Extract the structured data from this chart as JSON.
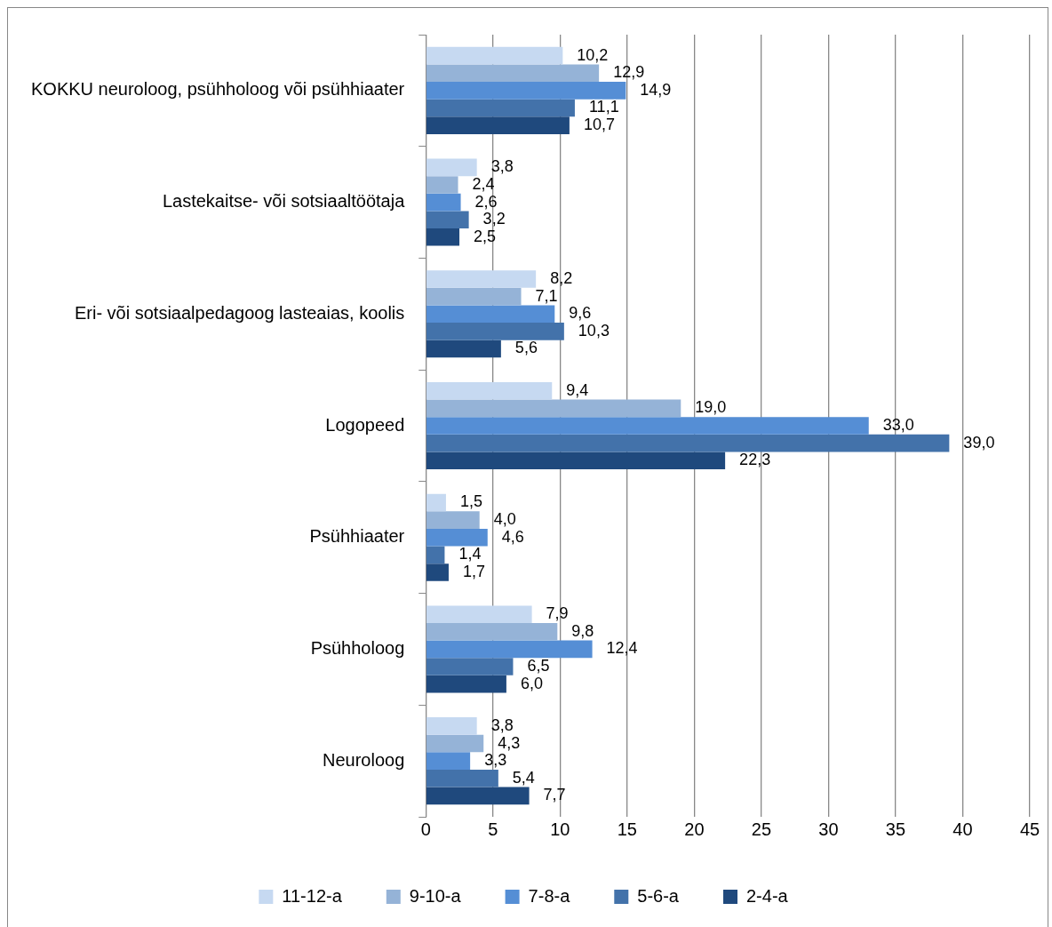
{
  "chart_data": {
    "type": "bar",
    "orientation": "horizontal",
    "categories": [
      "KOKKU neuroloog, psühholoog või psühhiaater",
      "Lastekaitse- või sotsiaaltöötaja",
      "Eri- või sotsiaalpedagoog lasteaias, koolis",
      "Logopeed",
      "Psühhiaater",
      "Psühholoog",
      "Neuroloog"
    ],
    "series": [
      {
        "name": "11-12-a",
        "color": "#c6d9f1",
        "values": [
          10.2,
          3.8,
          8.2,
          9.4,
          1.5,
          7.9,
          3.8
        ],
        "value_labels": [
          "10,2",
          "3,8",
          "8,2",
          "9,4",
          "1,5",
          "7,9",
          "3,8"
        ]
      },
      {
        "name": "9-10-a",
        "color": "#95b3d7",
        "values": [
          12.9,
          2.4,
          7.1,
          19.0,
          4.0,
          9.8,
          4.3
        ],
        "value_labels": [
          "12,9",
          "2,4",
          "7,1",
          "19,0",
          "4,0",
          "9,8",
          "4,3"
        ]
      },
      {
        "name": "7-8-a",
        "color": "#558ed5",
        "values": [
          14.9,
          2.6,
          9.6,
          33.0,
          4.6,
          12.4,
          3.3
        ],
        "value_labels": [
          "14,9",
          "2,6",
          "9,6",
          "33,0",
          "4,6",
          "12,4",
          "3,3"
        ]
      },
      {
        "name": "5-6-a",
        "color": "#4372aa",
        "values": [
          11.1,
          3.2,
          10.3,
          39.0,
          1.4,
          6.5,
          5.4
        ],
        "value_labels": [
          "11,1",
          "3,2",
          "10,3",
          "39,0",
          "1,4",
          "6,5",
          "5,4"
        ]
      },
      {
        "name": "2-4-a",
        "color": "#1f497d",
        "values": [
          10.7,
          2.5,
          5.6,
          22.3,
          1.7,
          6.0,
          7.7
        ],
        "value_labels": [
          "10,7",
          "2,5",
          "5,6",
          "22,3",
          "1,7",
          "6,0",
          "7,7"
        ]
      }
    ],
    "xlim": [
      0,
      45
    ],
    "xticks": [
      0,
      5,
      10,
      15,
      20,
      25,
      30,
      35,
      40,
      45
    ],
    "grid": "x",
    "legend": "bottom"
  }
}
